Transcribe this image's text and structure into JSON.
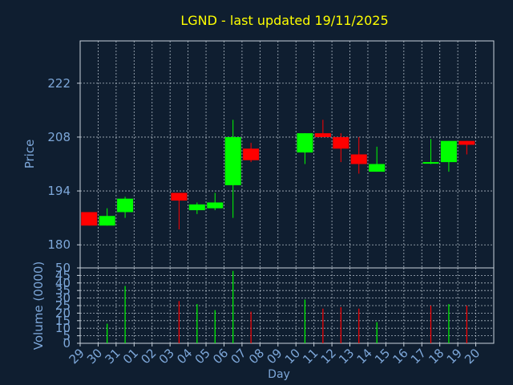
{
  "colors": {
    "background": "#0f1e30",
    "title": "#ffff00",
    "axis_text": "#7da7d9",
    "grid": "#c8d2dc",
    "up": "#00ff00",
    "down": "#ff0000"
  },
  "chart_data": [
    {
      "type": "candlestick",
      "title": "LGND - last updated 19/11/2025",
      "ylabel": "Price",
      "ylim": [
        174,
        233
      ],
      "yticks": [
        180,
        194,
        208,
        222
      ],
      "grid": true,
      "x_slots": 23,
      "categories": [
        "29",
        "30",
        "31",
        "01",
        "02",
        "03",
        "04",
        "05",
        "06",
        "07",
        "08",
        "09",
        "10",
        "11",
        "12",
        "13",
        "14",
        "15",
        "16",
        "17",
        "18",
        "19",
        "20"
      ],
      "candles": [
        {
          "x": "29",
          "open": 188.5,
          "high": 188.5,
          "low": 185.0,
          "close": 185.0
        },
        {
          "x": "30",
          "open": 185.0,
          "high": 189.5,
          "low": 185.0,
          "close": 187.5
        },
        {
          "x": "31",
          "open": 188.5,
          "high": 192.5,
          "low": 187.0,
          "close": 192.0
        },
        {
          "x": "03",
          "open": 193.5,
          "high": 193.5,
          "low": 184.0,
          "close": 191.5
        },
        {
          "x": "04",
          "open": 189.0,
          "high": 191.0,
          "low": 188.0,
          "close": 190.5
        },
        {
          "x": "05",
          "open": 189.5,
          "high": 193.5,
          "low": 189.0,
          "close": 191.0
        },
        {
          "x": "06",
          "open": 195.5,
          "high": 212.5,
          "low": 187.0,
          "close": 208.0
        },
        {
          "x": "07",
          "open": 205.0,
          "high": 206.5,
          "low": 201.5,
          "close": 202.0
        },
        {
          "x": "10",
          "open": 204.0,
          "high": 209.0,
          "low": 201.0,
          "close": 209.0
        },
        {
          "x": "11",
          "open": 209.0,
          "high": 212.5,
          "low": 208.0,
          "close": 208.0
        },
        {
          "x": "12",
          "open": 208.0,
          "high": 209.0,
          "low": 201.5,
          "close": 205.0
        },
        {
          "x": "13",
          "open": 203.5,
          "high": 208.0,
          "low": 198.5,
          "close": 201.0
        },
        {
          "x": "14",
          "open": 199.0,
          "high": 205.5,
          "low": 199.0,
          "close": 201.0
        },
        {
          "x": "17",
          "open": 201.5,
          "high": 207.5,
          "low": 201.0,
          "close": 201.5
        },
        {
          "x": "18",
          "open": 201.5,
          "high": 207.0,
          "low": 199.0,
          "close": 207.0
        },
        {
          "x": "19",
          "open": 207.0,
          "high": 207.0,
          "low": 203.5,
          "close": 206.0
        }
      ]
    },
    {
      "type": "bar",
      "ylabel": "Volume (0000)",
      "xlabel": "Day",
      "ylim": [
        0,
        50
      ],
      "yticks": [
        0,
        5,
        10,
        15,
        20,
        25,
        30,
        35,
        40,
        45,
        50
      ],
      "grid": true,
      "categories": [
        "29",
        "30",
        "31",
        "01",
        "02",
        "03",
        "04",
        "05",
        "06",
        "07",
        "08",
        "09",
        "10",
        "11",
        "12",
        "13",
        "14",
        "15",
        "16",
        "17",
        "18",
        "19",
        "20"
      ],
      "values": [
        {
          "x": "30",
          "value": 13,
          "dir": "up"
        },
        {
          "x": "31",
          "value": 38,
          "dir": "up"
        },
        {
          "x": "03",
          "value": 28,
          "dir": "down"
        },
        {
          "x": "04",
          "value": 26,
          "dir": "up"
        },
        {
          "x": "05",
          "value": 22,
          "dir": "up"
        },
        {
          "x": "06",
          "value": 48,
          "dir": "up"
        },
        {
          "x": "07",
          "value": 21,
          "dir": "down"
        },
        {
          "x": "10",
          "value": 29,
          "dir": "up"
        },
        {
          "x": "11",
          "value": 23,
          "dir": "down"
        },
        {
          "x": "12",
          "value": 24,
          "dir": "down"
        },
        {
          "x": "13",
          "value": 23,
          "dir": "down"
        },
        {
          "x": "14",
          "value": 14,
          "dir": "up"
        },
        {
          "x": "17",
          "value": 25,
          "dir": "down"
        },
        {
          "x": "18",
          "value": 26,
          "dir": "up"
        },
        {
          "x": "19",
          "value": 25,
          "dir": "down"
        }
      ]
    }
  ]
}
